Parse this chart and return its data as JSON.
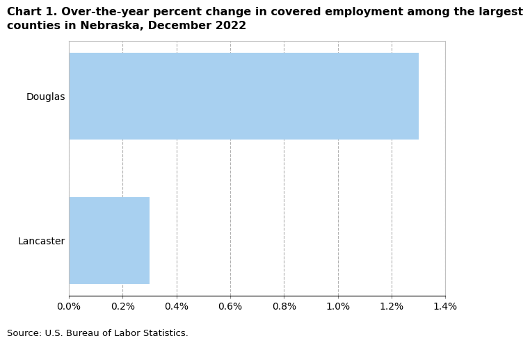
{
  "categories": [
    "Lancaster",
    "Douglas"
  ],
  "values": [
    0.003,
    0.013
  ],
  "bar_color": "#a8d0f0",
  "title_line1": "Chart 1. Over-the-year percent change in covered employment among the largest",
  "title_line2": "counties in Nebraska, December 2022",
  "title_fontsize": 11.5,
  "source_text": "Source: U.S. Bureau of Labor Statistics.",
  "xlim": [
    0,
    0.014
  ],
  "xticks": [
    0.0,
    0.002,
    0.004,
    0.006,
    0.008,
    0.01,
    0.012,
    0.014
  ],
  "xtick_labels": [
    "0.0%",
    "0.2%",
    "0.4%",
    "0.6%",
    "0.8%",
    "1.0%",
    "1.2%",
    "1.4%"
  ],
  "grid_color": "#b0b0b0",
  "bar_edge_color": "none",
  "background_color": "#ffffff",
  "ytick_fontsize": 10,
  "xtick_fontsize": 10,
  "source_fontsize": 9.5
}
